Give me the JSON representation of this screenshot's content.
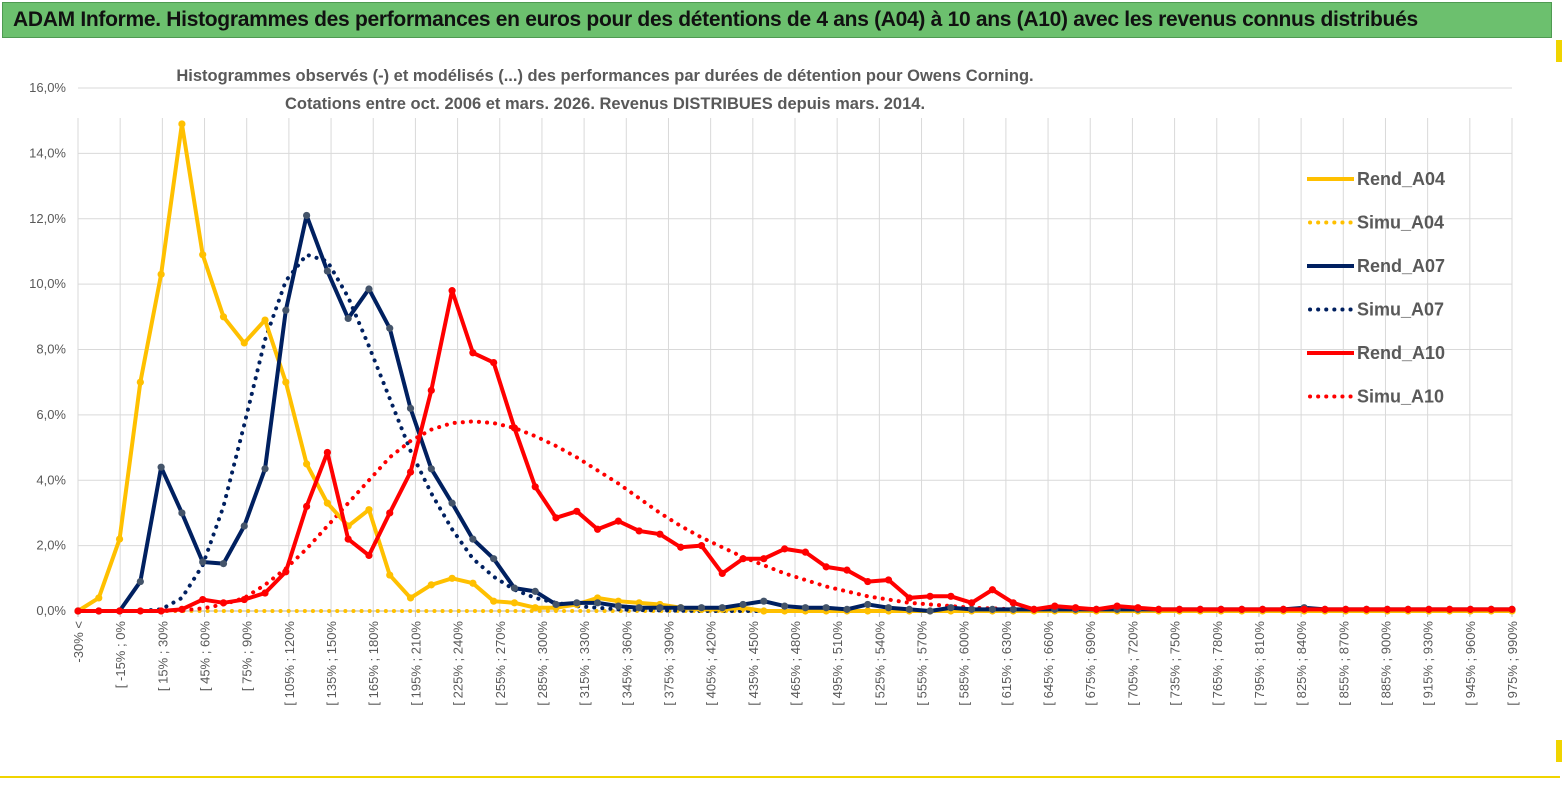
{
  "banner": {
    "title": "ADAM Informe. Histogrammes des performances en euros pour des détentions de 4 ans (A04) à 10 ans (A10) avec les revenus connus distribués"
  },
  "chart_data": {
    "type": "line",
    "title_line1": "Histogrammes observés (-) et modélisés (...)  des performances par durées de détention pour Owens Corning.",
    "title_line2": "Cotations entre oct. 2006 et mars. 2026. Revenus DISTRIBUES depuis mars. 2014.",
    "ylim": [
      0,
      16
    ],
    "y_ticks": [
      "0,0%",
      "2,0%",
      "4,0%",
      "6,0%",
      "8,0%",
      "10,0%",
      "12,0%",
      "14,0%",
      "16,0%"
    ],
    "x_labels": [
      "-30% <",
      "[ -15% ; 0%",
      "[ 15% ; 30%",
      "[ 45% ; 60%",
      "[ 75% ; 90%",
      "[ 105% ; 120%",
      "[ 135% ; 150%",
      "[ 165% ; 180%",
      "[ 195% ; 210%",
      "[ 225% ; 240%",
      "[ 255% ; 270%",
      "[ 285% ; 300%",
      "[ 315% ; 330%",
      "[ 345% ; 360%",
      "[ 375% ; 390%",
      "[ 405% ; 420%",
      "[ 435% ; 450%",
      "[ 465% ; 480%",
      "[ 495% ; 510%",
      "[ 525% ; 540%",
      "[ 555% ; 570%",
      "[ 585% ; 600%",
      "[ 615% ; 630%",
      "[ 645% ; 660%",
      "[ 675% ; 690%",
      "[ 705% ; 720%",
      "[ 735% ; 750%",
      "[ 765% ; 780%",
      "[ 795% ; 810%",
      "[ 825% ; 840%",
      "[ 855% ; 870%",
      "[ 885% ; 900%",
      "[ 915% ; 930%",
      "[ 945% ; 960%",
      "[ 975% ; 990%"
    ],
    "series": [
      {
        "name": "Rend_A04",
        "style": "solid",
        "color": "#ffc000",
        "values": [
          0,
          0.4,
          2.2,
          7.0,
          10.3,
          14.9,
          10.9,
          9.0,
          8.2,
          8.9,
          7.0,
          4.5,
          3.3,
          2.6,
          3.1,
          1.1,
          0.4,
          0.8,
          1.0,
          0.85,
          0.3,
          0.25,
          0.1,
          0.1,
          0.2,
          0.4,
          0.3,
          0.25,
          0.2,
          0.1,
          0.05,
          0.05,
          0.1,
          0,
          0,
          0,
          0,
          0,
          0,
          0,
          0,
          0,
          0,
          0,
          0,
          0,
          0,
          0,
          0,
          0,
          0,
          0,
          0,
          0,
          0,
          0,
          0,
          0,
          0,
          0,
          0,
          0,
          0,
          0,
          0,
          0,
          0,
          0,
          0,
          0
        ]
      },
      {
        "name": "Simu_A04",
        "style": "dotted",
        "color": "#ffc000",
        "values": [
          0,
          0,
          0,
          0,
          0,
          0,
          0,
          0,
          0,
          0,
          0,
          0,
          0,
          0,
          0,
          0,
          0,
          0,
          0,
          0,
          0,
          0,
          0,
          0,
          0,
          0,
          0,
          0,
          0,
          0,
          0,
          0,
          0,
          0,
          0,
          0,
          0,
          0,
          0,
          0,
          0,
          0,
          0,
          0,
          0,
          0,
          0,
          0,
          0,
          0,
          0,
          0,
          0,
          0,
          0,
          0,
          0,
          0,
          0,
          0,
          0,
          0,
          0,
          0,
          0,
          0,
          0,
          0,
          0,
          0
        ]
      },
      {
        "name": "Rend_A07",
        "style": "solid",
        "color": "#002060",
        "values": [
          0,
          0,
          0,
          0.9,
          4.4,
          3.0,
          1.5,
          1.45,
          2.6,
          4.35,
          9.2,
          12.1,
          10.4,
          8.95,
          9.85,
          8.65,
          6.2,
          4.35,
          3.3,
          2.2,
          1.6,
          0.7,
          0.6,
          0.2,
          0.25,
          0.25,
          0.15,
          0.1,
          0.1,
          0.1,
          0.1,
          0.1,
          0.2,
          0.3,
          0.15,
          0.1,
          0.1,
          0.05,
          0.2,
          0.1,
          0.05,
          0,
          0.1,
          0.05,
          0.05,
          0.05,
          0.05,
          0.05,
          0.05,
          0.05,
          0.05,
          0.05,
          0.05,
          0.05,
          0.05,
          0.05,
          0.05,
          0.05,
          0.05,
          0.1,
          0.05,
          0.05,
          0.05,
          0.05,
          0.05,
          0.05,
          0.05,
          0.05,
          0.05,
          0.05
        ]
      },
      {
        "name": "Simu_A07",
        "style": "dotted",
        "color": "#002060",
        "values": [
          0,
          0,
          0,
          0,
          0.05,
          0.4,
          1.4,
          3.2,
          5.7,
          8.3,
          10.1,
          10.9,
          10.7,
          9.6,
          8.1,
          6.5,
          4.9,
          3.6,
          2.5,
          1.6,
          1.05,
          0.65,
          0.4,
          0.25,
          0.15,
          0.1,
          0.05,
          0.03,
          0.02,
          0.01,
          0,
          0,
          0,
          0,
          0,
          0,
          0,
          0,
          0,
          0,
          0,
          0,
          0,
          0,
          0,
          0,
          0,
          0,
          0,
          0,
          0,
          0,
          0,
          0,
          0,
          0,
          0,
          0,
          0,
          0,
          0,
          0,
          0,
          0,
          0,
          0,
          0,
          0,
          0,
          0
        ]
      },
      {
        "name": "Rend_A10",
        "style": "solid",
        "color": "#ff0000",
        "values": [
          0,
          0,
          0,
          0,
          0,
          0.05,
          0.35,
          0.25,
          0.35,
          0.55,
          1.2,
          3.2,
          4.85,
          2.2,
          1.7,
          3.0,
          4.25,
          6.75,
          9.8,
          7.9,
          7.6,
          5.6,
          3.8,
          2.85,
          3.05,
          2.5,
          2.75,
          2.45,
          2.35,
          1.95,
          2.0,
          1.15,
          1.6,
          1.6,
          1.9,
          1.8,
          1.35,
          1.25,
          0.9,
          0.95,
          0.4,
          0.45,
          0.45,
          0.25,
          0.65,
          0.25,
          0.05,
          0.15,
          0.1,
          0.05,
          0.15,
          0.1,
          0.05,
          0.05,
          0.05,
          0.05,
          0.05,
          0.05,
          0.05,
          0.05,
          0.05,
          0.05,
          0.05,
          0.05,
          0.05,
          0.05,
          0.05,
          0.05,
          0.05,
          0.05
        ]
      },
      {
        "name": "Simu_A10",
        "style": "dotted",
        "color": "#ff0000",
        "values": [
          0,
          0,
          0,
          0,
          0,
          0.02,
          0.08,
          0.2,
          0.4,
          0.8,
          1.3,
          1.9,
          2.6,
          3.3,
          4.0,
          4.7,
          5.2,
          5.55,
          5.75,
          5.8,
          5.75,
          5.6,
          5.35,
          5.05,
          4.7,
          4.3,
          3.9,
          3.45,
          3.0,
          2.6,
          2.25,
          1.95,
          1.65,
          1.4,
          1.15,
          0.95,
          0.75,
          0.6,
          0.45,
          0.35,
          0.25,
          0.2,
          0.15,
          0.1,
          0.08,
          0.05,
          0.03,
          0.02,
          0.01,
          0,
          0,
          0,
          0,
          0,
          0,
          0,
          0,
          0,
          0,
          0,
          0,
          0,
          0,
          0,
          0,
          0,
          0,
          0,
          0,
          0
        ]
      }
    ],
    "legend_position": "right"
  }
}
